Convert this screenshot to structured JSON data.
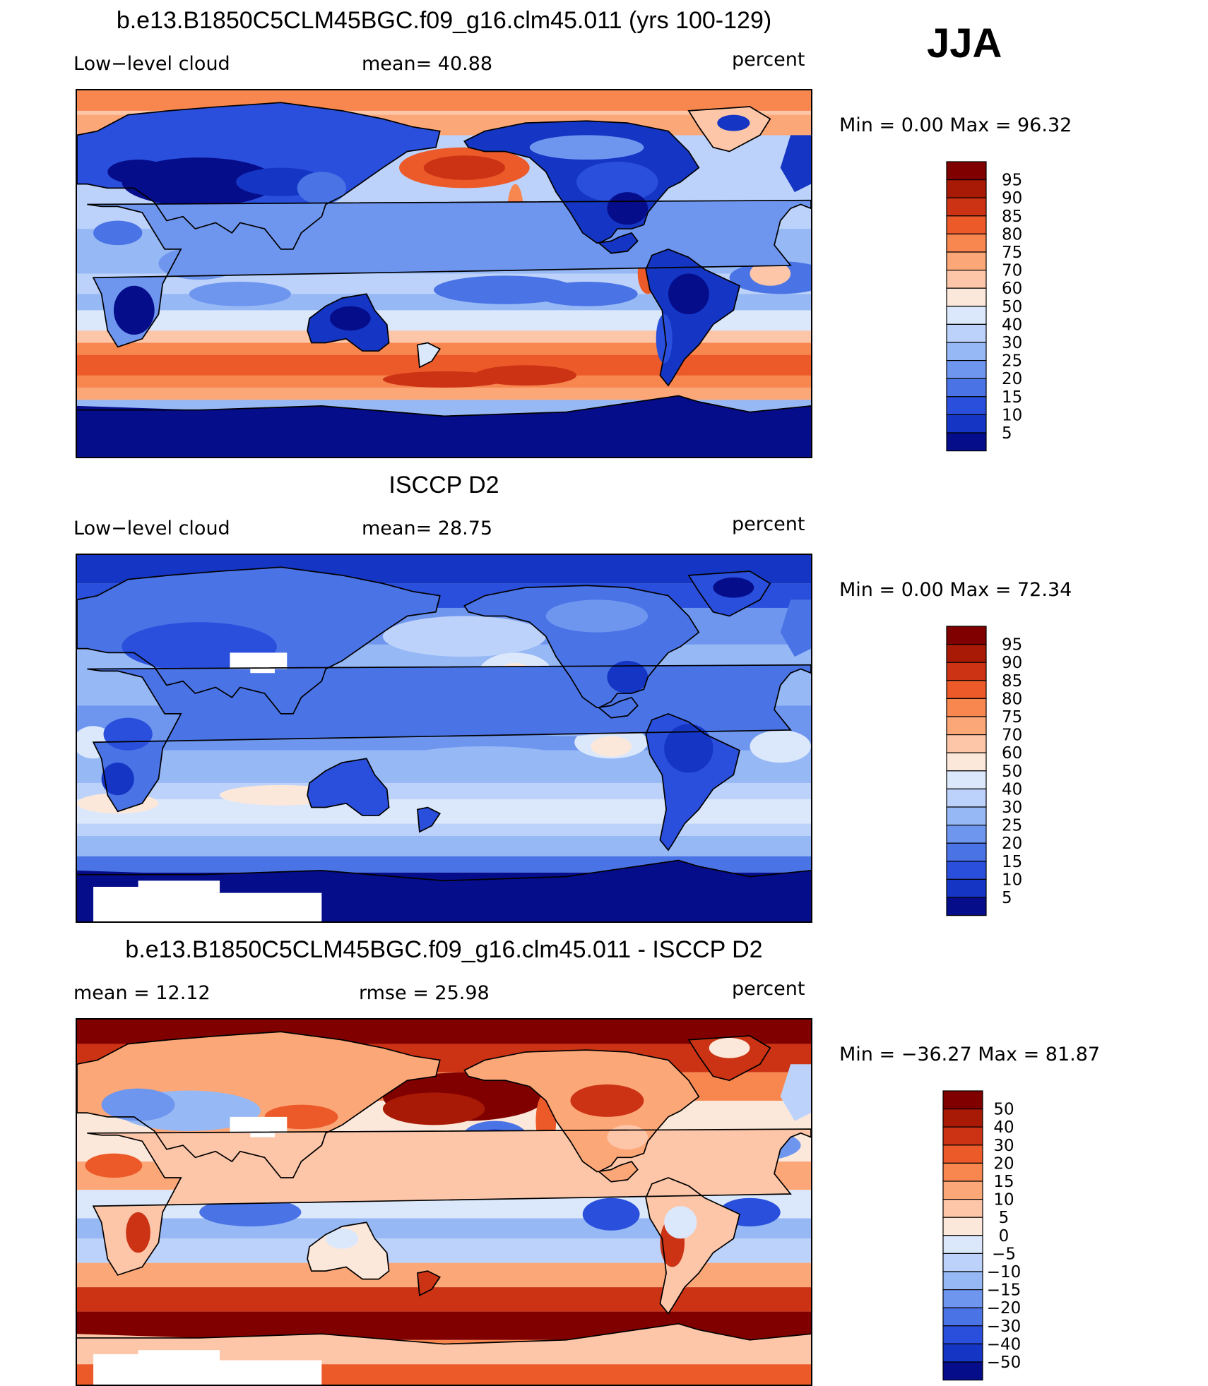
{
  "season": "JJA",
  "panels": [
    {
      "title": "b.e13.B1850C5CLM45BGC.f09_g16.clm45.011 (yrs 100-129)",
      "left_label": "Low−level cloud",
      "center_label": "mean=   40.88",
      "units": "percent",
      "minmax": "Min  =     0.00  Max  =    96.32",
      "mean": 40.88,
      "min": 0.0,
      "max": 96.32,
      "field": "model",
      "colorbar": {
        "levels": [
          "95",
          "90",
          "85",
          "80",
          "75",
          "70",
          "60",
          "50",
          "40",
          "30",
          "25",
          "20",
          "15",
          "10",
          "5"
        ],
        "colors": [
          "#800000",
          "#a81a05",
          "#cc3314",
          "#ec5a2a",
          "#f7864f",
          "#fca778",
          "#fdc6a8",
          "#fce8da",
          "#dbe8fc",
          "#bdd2fa",
          "#96b8f5",
          "#6f96ef",
          "#4a73e6",
          "#2a4fdc",
          "#1536c4",
          "#050d8a"
        ]
      }
    },
    {
      "title": "ISCCP D2",
      "left_label": "Low−level cloud",
      "center_label": "mean=   28.75",
      "units": "percent",
      "minmax": "Min  =     0.00  Max  =    72.34",
      "mean": 28.75,
      "min": 0.0,
      "max": 72.34,
      "field": "obs",
      "colorbar": {
        "levels": [
          "95",
          "90",
          "85",
          "80",
          "75",
          "70",
          "60",
          "50",
          "40",
          "30",
          "25",
          "20",
          "15",
          "10",
          "5"
        ],
        "colors": [
          "#800000",
          "#a81a05",
          "#cc3314",
          "#ec5a2a",
          "#f7864f",
          "#fca778",
          "#fdc6a8",
          "#fce8da",
          "#dbe8fc",
          "#bdd2fa",
          "#96b8f5",
          "#6f96ef",
          "#4a73e6",
          "#2a4fdc",
          "#1536c4",
          "#050d8a"
        ]
      }
    },
    {
      "title": "b.e13.B1850C5CLM45BGC.f09_g16.clm45.011 - ISCCP D2",
      "left_label": "mean  =    12.12",
      "center_label": "rmse  =    25.98",
      "units": "percent",
      "minmax": "Min  = −36.27  Max  =    81.87",
      "mean": 12.12,
      "rmse": 25.98,
      "min": -36.27,
      "max": 81.87,
      "field": "diff",
      "colorbar": {
        "levels": [
          "50",
          "40",
          "30",
          "20",
          "15",
          "10",
          "5",
          "0",
          "−5",
          "−10",
          "−15",
          "−20",
          "−30",
          "−40",
          "−50"
        ],
        "colors": [
          "#800000",
          "#a81a05",
          "#cc3314",
          "#ec5a2a",
          "#f7864f",
          "#fca778",
          "#fdc6a8",
          "#fce8da",
          "#dbe8fc",
          "#bdd2fa",
          "#96b8f5",
          "#6f96ef",
          "#4a73e6",
          "#2a4fdc",
          "#1536c4",
          "#050d8a"
        ]
      }
    }
  ]
}
